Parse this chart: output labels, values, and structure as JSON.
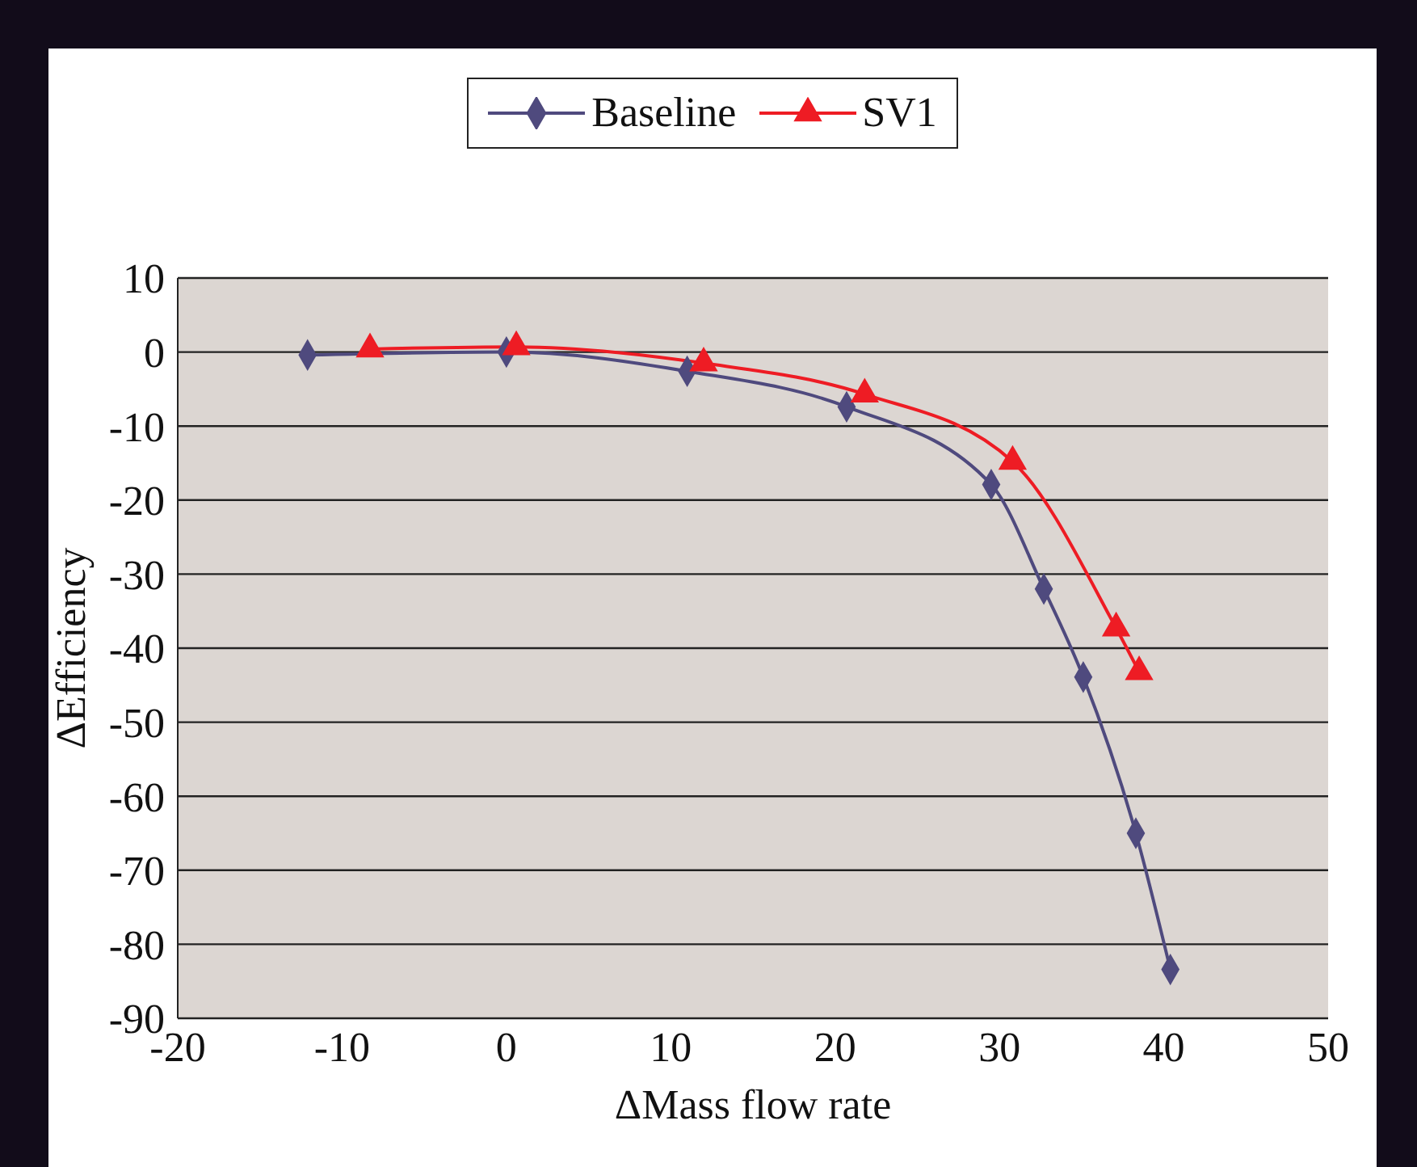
{
  "chart_data": {
    "type": "line",
    "xlabel": "ΔMass flow rate",
    "ylabel": "ΔEfficiency",
    "xlim": [
      -20,
      50
    ],
    "xticks": [
      -20,
      -10,
      0,
      10,
      20,
      30,
      40,
      50
    ],
    "ylim": [
      -90,
      10
    ],
    "yticks": [
      -90,
      -80,
      -70,
      -60,
      -50,
      -40,
      -30,
      -20,
      -10,
      0,
      10
    ],
    "grid": "y",
    "legend": "top",
    "series": [
      {
        "name": "Baseline",
        "color": "#4f4a7e",
        "marker": "diamond",
        "x": [
          -12.1,
          0,
          11.0,
          20.7,
          29.5,
          32.7,
          35.1,
          38.3,
          40.4
        ],
        "values": [
          -0.4,
          0,
          -2.6,
          -7.4,
          -17.9,
          -32,
          -43.9,
          -65,
          -83.4
        ]
      },
      {
        "name": "SV1",
        "color": "#ee1c24",
        "marker": "triangle",
        "x": [
          -8.3,
          0.6,
          12.0,
          21.8,
          30.8,
          37.1,
          38.5
        ],
        "values": [
          0.4,
          0.7,
          -1.5,
          -5.7,
          -14.8,
          -37.3,
          -43.2
        ]
      }
    ]
  }
}
